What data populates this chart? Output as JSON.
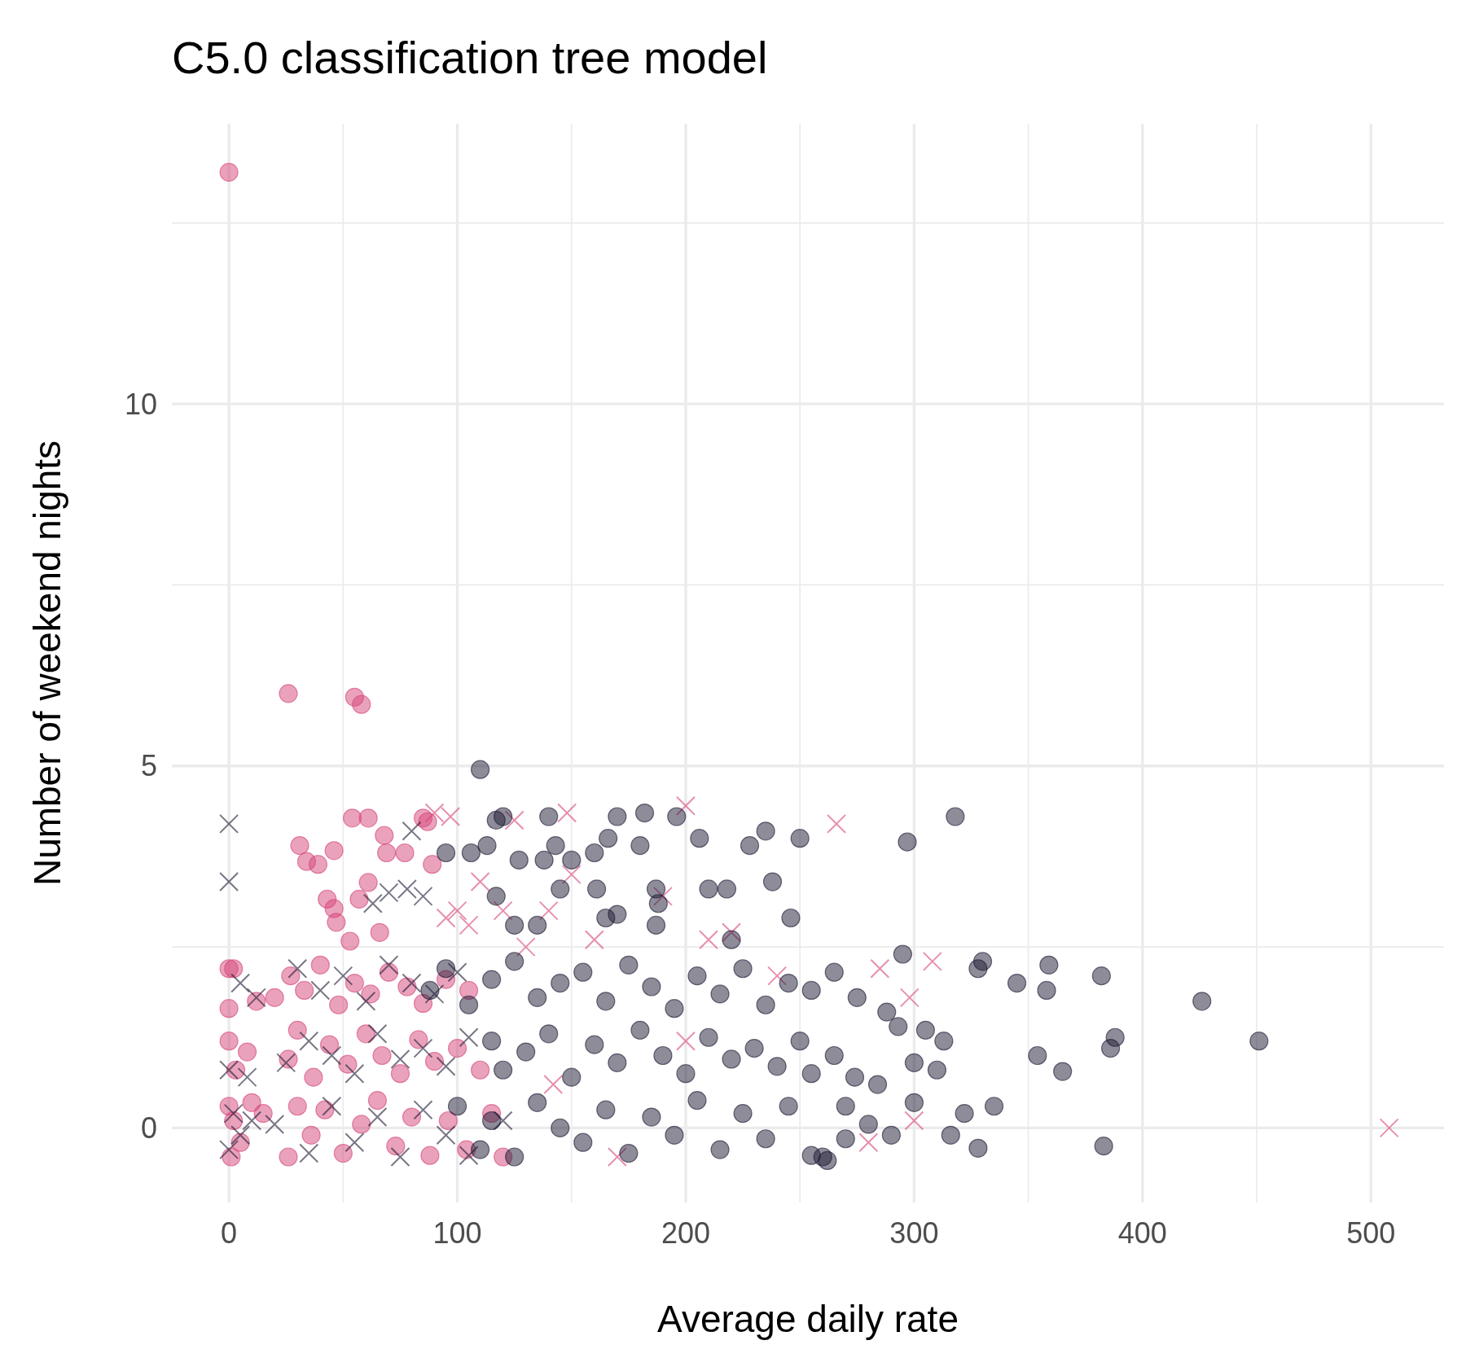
{
  "chart_data": {
    "type": "scatter",
    "title": "C5.0 classification tree model",
    "xlabel": "Average daily rate",
    "ylabel": "Number of weekend nights",
    "xlim": [
      -25,
      532
    ],
    "ylim": [
      -1.03,
      13.87
    ],
    "xticks": [
      0,
      {
        "value": 50,
        "label": null
      },
      100,
      {
        "value": 150,
        "label": null
      },
      200,
      {
        "value": 250,
        "label": null
      },
      300,
      {
        "value": 350,
        "label": null
      },
      400,
      {
        "value": 450,
        "label": null
      },
      500
    ],
    "yticks": [
      0,
      {
        "value": 2.5,
        "label": null
      },
      5,
      {
        "value": 7.5,
        "label": null
      },
      10,
      {
        "value": 12.5,
        "label": null
      }
    ],
    "grid": true,
    "series": [
      {
        "color": "#d6457a",
        "marker": "circle",
        "x": [
          0,
          26,
          55,
          58,
          0,
          54,
          61,
          31,
          34,
          39,
          46,
          43,
          46,
          47,
          57,
          68,
          69,
          77,
          85,
          87,
          89,
          53,
          61,
          66,
          0,
          2,
          12,
          20,
          27,
          33,
          40,
          48,
          55,
          62,
          70,
          78,
          85,
          95,
          105,
          0,
          3,
          8,
          26,
          30,
          37,
          44,
          52,
          60,
          67,
          75,
          83,
          90,
          100,
          110,
          0,
          1,
          2,
          5,
          10,
          15,
          26,
          30,
          36,
          42,
          50,
          58,
          65,
          73,
          80,
          88,
          96,
          104,
          115,
          120
        ],
        "values": [
          13.2,
          6.0,
          5.95,
          5.85,
          2.2,
          4.28,
          4.28,
          3.9,
          3.68,
          3.64,
          3.83,
          3.16,
          3.03,
          2.84,
          3.16,
          4.04,
          3.8,
          3.8,
          4.28,
          4.23,
          3.64,
          2.58,
          3.39,
          2.7,
          1.65,
          2.2,
          1.75,
          1.8,
          2.1,
          1.9,
          2.25,
          1.7,
          2.0,
          1.85,
          2.15,
          1.95,
          1.72,
          2.05,
          1.9,
          1.2,
          0.8,
          1.05,
          0.95,
          1.35,
          0.7,
          1.15,
          0.88,
          1.3,
          1.0,
          0.75,
          1.22,
          0.92,
          1.1,
          0.8,
          0.3,
          -0.4,
          0.1,
          -0.2,
          0.35,
          0.2,
          -0.4,
          0.3,
          -0.1,
          0.25,
          -0.35,
          0.05,
          0.38,
          -0.25,
          0.15,
          -0.38,
          0.1,
          -0.3,
          0.2,
          -0.4
        ]
      },
      {
        "color": "#d6457a",
        "marker": "cross",
        "x": [
          508,
          266,
          148,
          200,
          90,
          97,
          125,
          280,
          308,
          298,
          300,
          285,
          110,
          100,
          95,
          120,
          105,
          150,
          190,
          210,
          220,
          160,
          130,
          140,
          142,
          170,
          200,
          240
        ],
        "values": [
          0,
          4.2,
          4.35,
          4.45,
          4.35,
          4.3,
          4.25,
          -0.2,
          2.3,
          1.8,
          0.1,
          2.2,
          3.4,
          3.0,
          2.9,
          3.0,
          2.8,
          3.5,
          3.2,
          2.6,
          2.7,
          2.6,
          2.5,
          3.0,
          0.6,
          -0.4,
          1.2,
          2.1
        ]
      },
      {
        "color": "#1e1a33",
        "marker": "cross",
        "x": [
          0,
          0,
          80,
          70,
          63,
          78,
          85,
          5,
          12,
          30,
          40,
          50,
          60,
          70,
          80,
          90,
          100,
          0,
          8,
          25,
          35,
          45,
          55,
          65,
          75,
          85,
          95,
          105,
          0,
          2,
          5,
          10,
          20,
          35,
          45,
          55,
          65,
          75,
          85,
          95,
          105,
          120
        ],
        "values": [
          4.2,
          3.4,
          4.1,
          3.25,
          3.1,
          3.3,
          3.2,
          2.0,
          1.8,
          2.2,
          1.9,
          2.1,
          1.75,
          2.25,
          2.0,
          1.85,
          2.15,
          0.8,
          0.7,
          0.9,
          1.2,
          1.0,
          0.75,
          1.3,
          0.95,
          1.1,
          0.85,
          1.25,
          -0.3,
          0.2,
          -0.1,
          0.1,
          0.05,
          -0.35,
          0.3,
          -0.2,
          0.15,
          -0.4,
          0.25,
          -0.1,
          -0.38,
          0.1
        ]
      },
      {
        "color": "#1e1a33",
        "marker": "circle",
        "x": [
          110,
          318,
          297,
          426,
          451,
          383,
          388,
          386,
          365,
          335,
          328,
          359,
          358,
          345,
          382,
          354,
          330,
          328,
          322,
          316,
          310,
          313,
          305,
          300,
          295,
          293,
          288,
          284,
          274,
          270,
          265,
          260,
          235,
          250,
          246,
          238,
          228,
          206,
          196,
          182,
          170,
          166,
          160,
          150,
          140,
          143,
          120,
          117,
          106,
          95,
          113,
          127,
          138,
          145,
          161,
          165,
          170,
          187,
          188,
          210,
          218,
          180,
          125,
          135,
          117,
          187,
          220,
          88,
          95,
          105,
          115,
          125,
          135,
          145,
          155,
          165,
          175,
          185,
          195,
          205,
          215,
          225,
          235,
          245,
          255,
          265,
          275,
          115,
          120,
          130,
          140,
          150,
          160,
          170,
          180,
          190,
          200,
          210,
          220,
          230,
          240,
          250,
          255,
          100,
          110,
          115,
          125,
          135,
          145,
          155,
          165,
          175,
          185,
          195,
          205,
          215,
          225,
          235,
          245,
          255,
          262,
          270,
          280,
          290,
          300
        ],
        "values": [
          4.95,
          4.3,
          3.95,
          1.75,
          1.2,
          -0.25,
          1.25,
          1.1,
          0.78,
          0.3,
          -0.28,
          2.25,
          1.9,
          2.0,
          2.1,
          1.0,
          2.3,
          2.2,
          0.2,
          -0.1,
          0.8,
          1.2,
          1.35,
          0.9,
          2.4,
          1.4,
          1.6,
          0.6,
          0.7,
          -0.15,
          1.0,
          -0.4,
          4.1,
          4.0,
          2.9,
          3.4,
          3.9,
          4.0,
          4.3,
          4.35,
          4.3,
          4.0,
          3.8,
          3.7,
          4.3,
          3.9,
          4.3,
          4.25,
          3.8,
          3.8,
          3.9,
          3.7,
          3.7,
          3.3,
          3.3,
          2.9,
          2.95,
          3.3,
          3.1,
          3.3,
          3.3,
          3.9,
          2.8,
          2.8,
          3.2,
          2.8,
          2.6,
          1.9,
          2.2,
          1.7,
          2.05,
          2.3,
          1.8,
          2.0,
          2.15,
          1.75,
          2.25,
          1.95,
          1.65,
          2.1,
          1.85,
          2.2,
          1.7,
          2.0,
          1.9,
          2.15,
          1.8,
          1.2,
          0.8,
          1.05,
          1.3,
          0.7,
          1.15,
          0.9,
          1.35,
          1.0,
          0.75,
          1.25,
          0.95,
          1.1,
          0.85,
          1.2,
          0.75,
          0.3,
          -0.3,
          0.1,
          -0.4,
          0.35,
          0.0,
          -0.2,
          0.25,
          -0.35,
          0.15,
          -0.1,
          0.38,
          -0.3,
          0.2,
          -0.15,
          0.3,
          -0.38,
          -0.45,
          0.3,
          0.05,
          -0.1,
          0.35
        ]
      }
    ]
  }
}
